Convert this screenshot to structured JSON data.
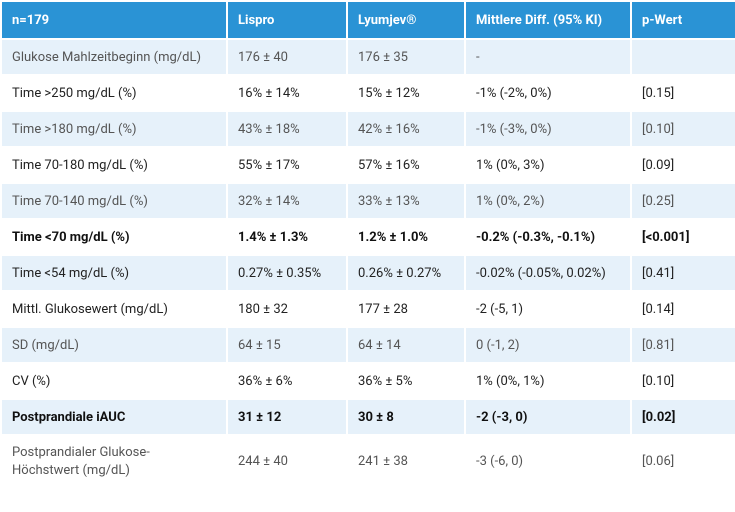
{
  "table": {
    "header": [
      "n=179",
      "Lispro",
      "Lyumjev®",
      "Mittlere Diff. (95% KI)",
      "p-Wert"
    ],
    "rows": [
      [
        "Glukose Mahlzeitbeginn (mg/dL)",
        "176 ± 40",
        "176 ± 35",
        "-",
        ""
      ],
      [
        "Time >250 mg/dL (%)",
        "16% ± 14%",
        "15% ± 12%",
        "-1% (-2%, 0%)",
        "[0.15]"
      ],
      [
        "Time >180 mg/dL (%)",
        "43% ± 18%",
        "42% ± 16%",
        "-1% (-3%, 0%)",
        "[0.10]"
      ],
      [
        "Time 70-180 mg/dL (%)",
        "55% ± 17%",
        "57% ± 16%",
        "1% (0%, 3%)",
        "[0.09]"
      ],
      [
        "Time 70-140 mg/dL (%)",
        "32% ± 14%",
        "33% ± 13%",
        "1% (0%, 2%)",
        "[0.25]"
      ],
      [
        "Time <70 mg/dL (%)",
        "1.4% ± 1.3%",
        "1.2% ± 1.0%",
        "-0.2% (-0.3%, -0.1%)",
        "[<0.001]"
      ],
      [
        "Time <54 mg/dL (%)",
        "0.27% ± 0.35%",
        "0.26% ± 0.27%",
        "-0.02% (-0.05%, 0.02%)",
        "[0.41]"
      ],
      [
        "Mittl. Glukosewert (mg/dL)",
        "180 ± 32",
        "177 ± 28",
        "-2 (-5, 1)",
        "[0.14]"
      ],
      [
        "SD (mg/dL)",
        "64 ± 15",
        "64 ± 14",
        "0 (-1, 2)",
        "[0.81]"
      ],
      [
        "CV (%)",
        "36% ± 6%",
        "36% ± 5%",
        "1% (0%, 1%)",
        "[0.10]"
      ],
      [
        "Postprandiale iAUC",
        "31 ± 12",
        "30 ± 8",
        "-2 (-3, 0)",
        "[0.02]"
      ],
      [
        "Postprandialer Glukose-Höchstwert (mg/dL)",
        "244 ± 40",
        "241 ± 38",
        "-3 (-6, 0)",
        "[0.06]"
      ]
    ]
  }
}
